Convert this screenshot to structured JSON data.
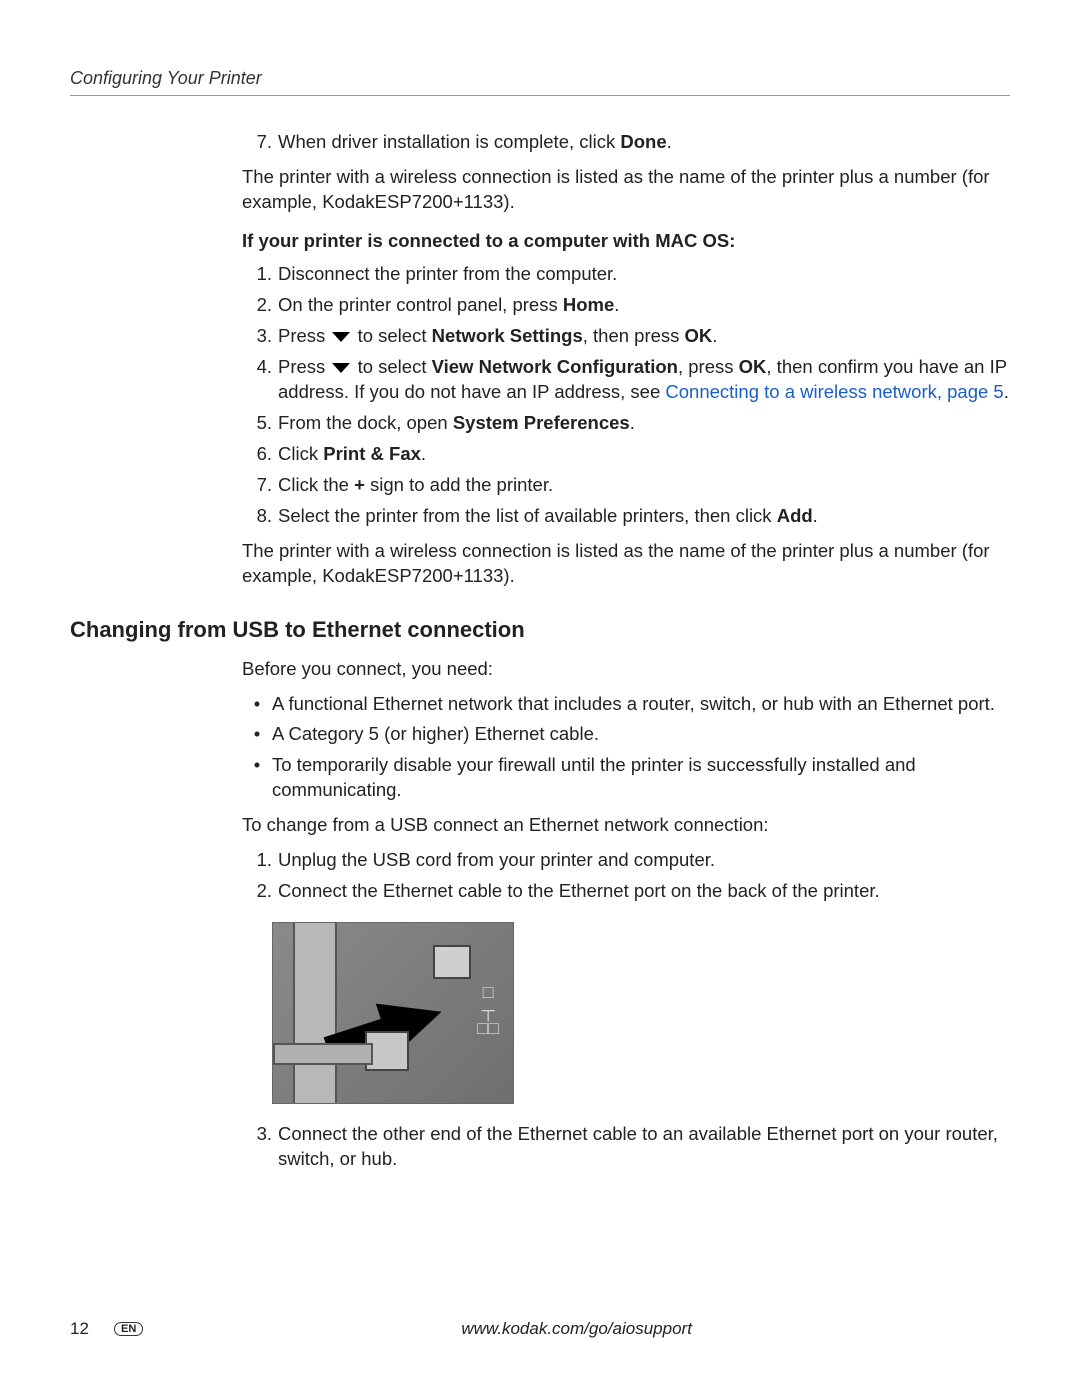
{
  "colors": {
    "text": "#222222",
    "link": "#1a5fc4",
    "rule": "#999999",
    "background": "#ffffff"
  },
  "typography": {
    "body_fontsize_pt": 14,
    "heading_fontsize_pt": 17,
    "running_head_style": "italic"
  },
  "running_head": "Configuring Your Printer",
  "top_list": {
    "start": 7,
    "items": [
      {
        "n": "7.",
        "segments": [
          {
            "t": "When driver installation is complete, click "
          },
          {
            "t": "Done",
            "bold": true
          },
          {
            "t": "."
          }
        ]
      }
    ]
  },
  "para_after_top": "The printer with a wireless connection is listed as the name of the printer plus a number (for example, KodakESP7200+1133).",
  "mac_heading": "If your printer is connected to a computer with MAC OS:",
  "mac_list": [
    {
      "n": "1.",
      "segments": [
        {
          "t": "Disconnect the printer from the computer."
        }
      ]
    },
    {
      "n": "2.",
      "segments": [
        {
          "t": "On the printer control panel, press "
        },
        {
          "t": "Home",
          "bold": true
        },
        {
          "t": "."
        }
      ]
    },
    {
      "n": "3.",
      "segments": [
        {
          "t": "Press "
        },
        {
          "icon": "arrow-down"
        },
        {
          "t": " to select "
        },
        {
          "t": "Network Settings",
          "bold": true
        },
        {
          "t": ", then press "
        },
        {
          "t": "OK",
          "bold": true
        },
        {
          "t": "."
        }
      ]
    },
    {
      "n": "4.",
      "segments": [
        {
          "t": "Press "
        },
        {
          "icon": "arrow-down"
        },
        {
          "t": " to select "
        },
        {
          "t": "View Network Configuration",
          "bold": true
        },
        {
          "t": ", press "
        },
        {
          "t": "OK",
          "bold": true
        },
        {
          "t": ", then confirm you have an IP address. If you do not have an IP address, see "
        },
        {
          "t": "Connecting to a wireless network, page 5",
          "link": true
        },
        {
          "t": "."
        }
      ]
    },
    {
      "n": "5.",
      "segments": [
        {
          "t": "From the dock, open "
        },
        {
          "t": "System Preferences",
          "bold": true
        },
        {
          "t": "."
        }
      ]
    },
    {
      "n": "6.",
      "segments": [
        {
          "t": "Click "
        },
        {
          "t": "Print & Fax",
          "bold": true
        },
        {
          "t": "."
        }
      ]
    },
    {
      "n": "7.",
      "segments": [
        {
          "t": "Click the "
        },
        {
          "t": "+",
          "bold": true
        },
        {
          "t": " sign to add the printer."
        }
      ]
    },
    {
      "n": "8.",
      "segments": [
        {
          "t": "Select the printer from the list of available printers, then click "
        },
        {
          "t": "Add",
          "bold": true
        },
        {
          "t": "."
        }
      ]
    }
  ],
  "para_after_mac": "The printer with a wireless connection is listed as the name of the printer plus a number (for example, KodakESP7200+1133).",
  "section_heading": "Changing from USB to Ethernet connection",
  "eth_intro": "Before you connect, you need:",
  "eth_bullets": [
    "A functional Ethernet network that includes a router, switch, or hub with an Ethernet port.",
    "A Category 5 (or higher) Ethernet cable.",
    "To temporarily disable your firewall until the printer is successfully installed and communicating."
  ],
  "eth_change_intro": "To change from a USB connect an Ethernet network connection:",
  "eth_steps_a": [
    {
      "n": "1.",
      "t": "Unplug the USB cord from your printer and computer."
    },
    {
      "n": "2.",
      "t": "Connect the Ethernet cable to the Ethernet port on the back of the printer."
    }
  ],
  "figure_alt": "Ethernet cable being plugged into the Ethernet port on the back of the printer",
  "eth_steps_b": [
    {
      "n": "3.",
      "t": "Connect the other end of the Ethernet cable to an available Ethernet port on your router, switch, or hub."
    }
  ],
  "footer": {
    "page_number": "12",
    "lang_badge": "EN",
    "url": "www.kodak.com/go/aiosupport"
  }
}
